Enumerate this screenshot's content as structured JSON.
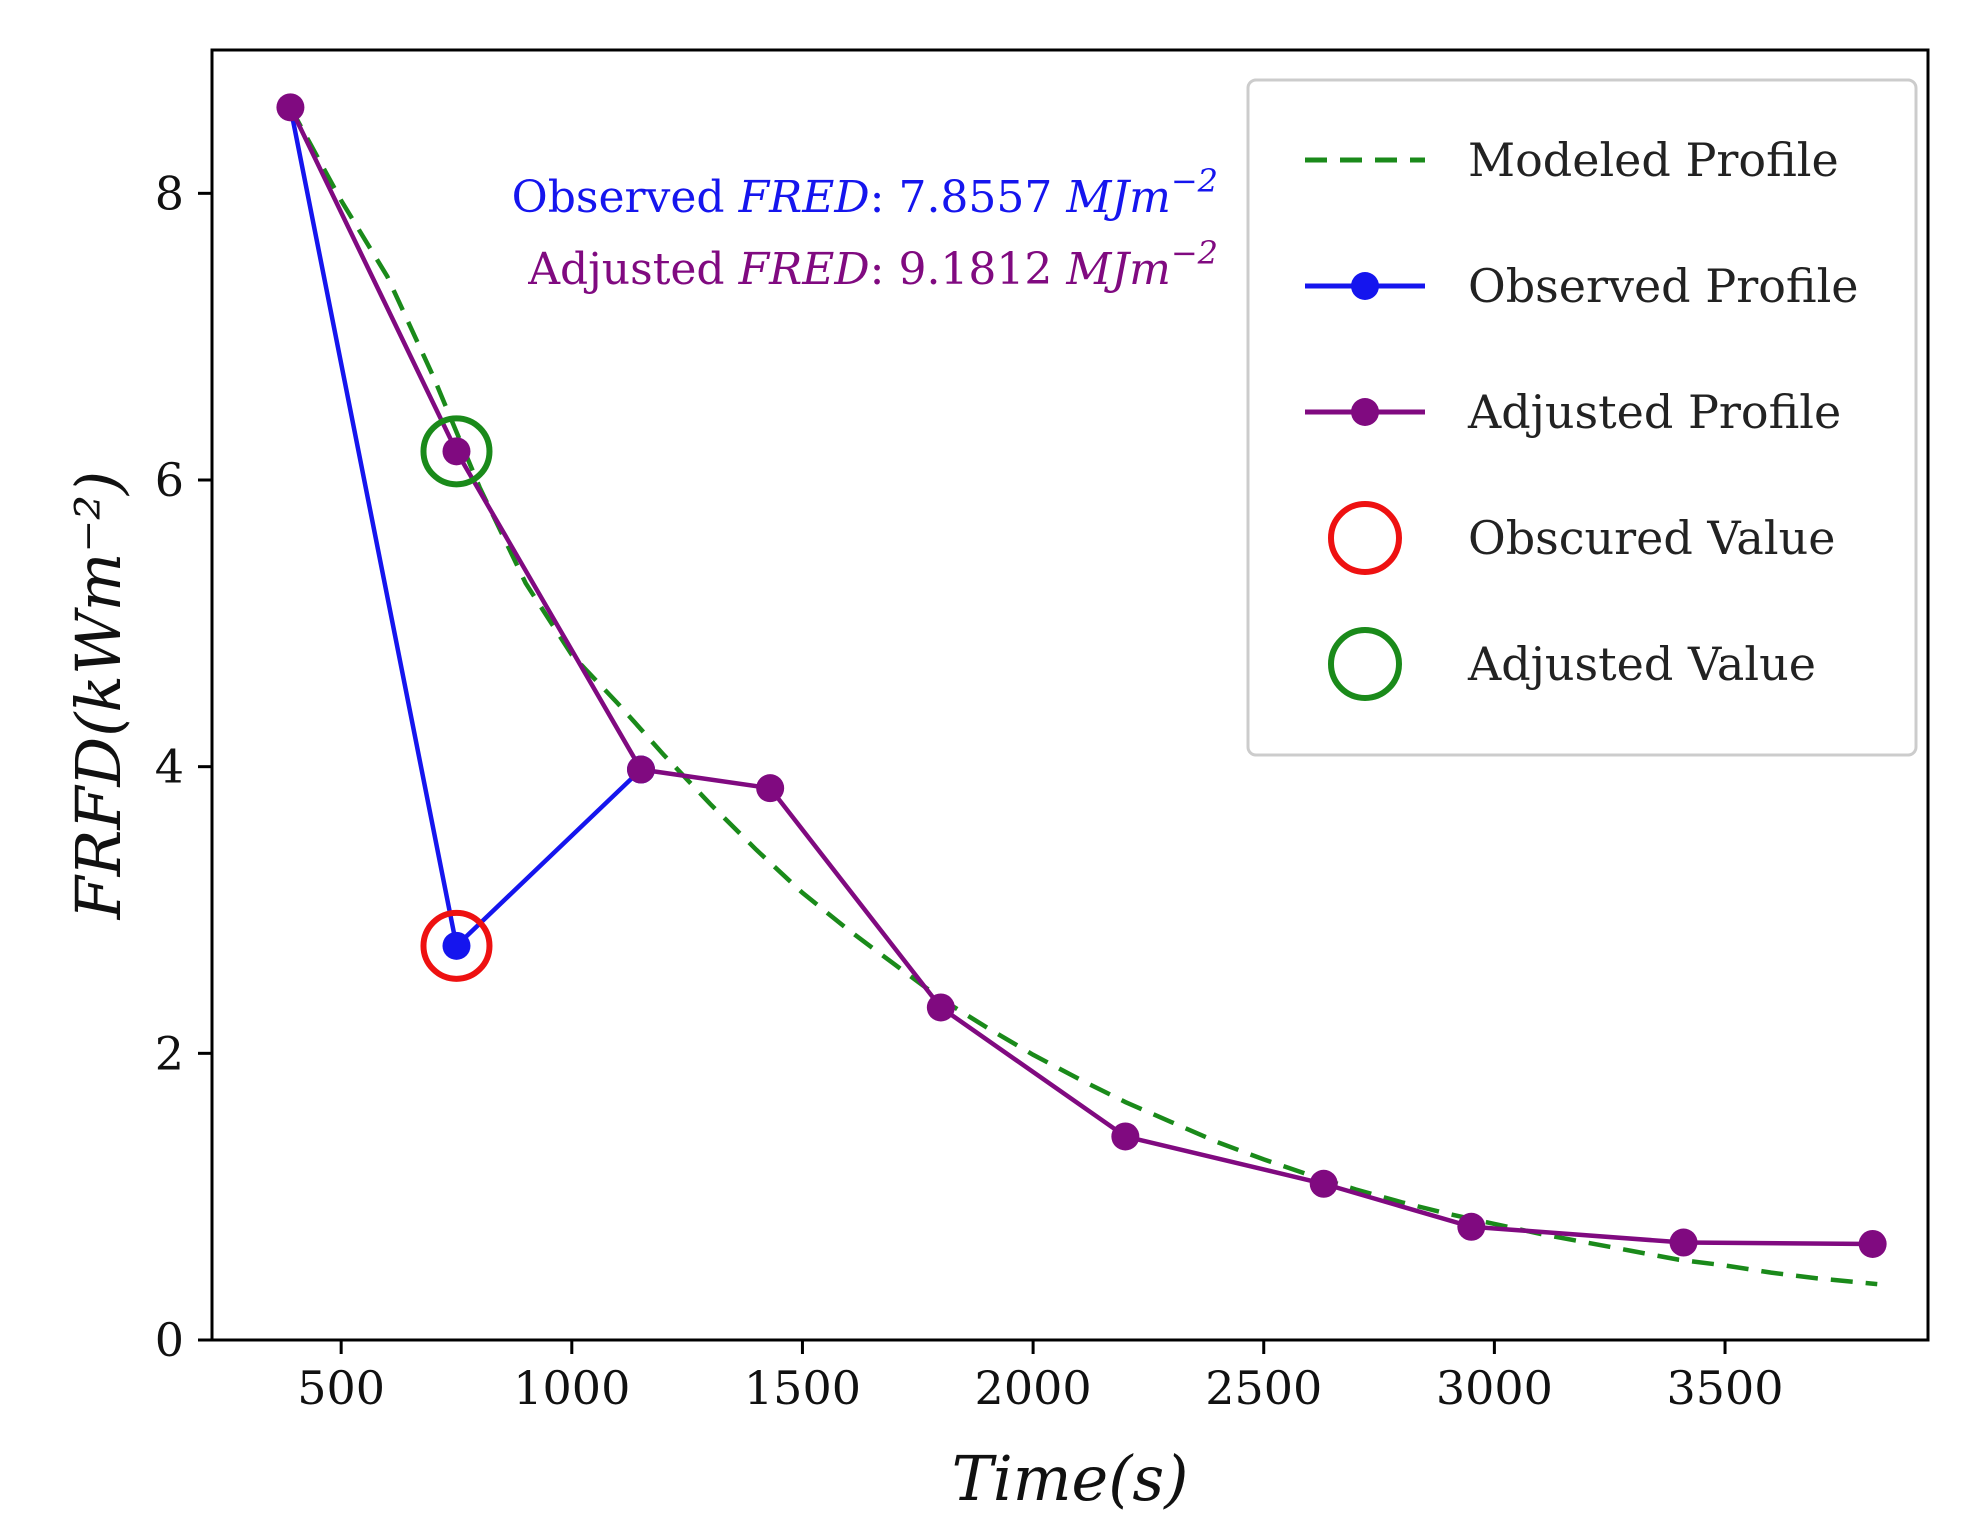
{
  "chart_data": {
    "type": "line",
    "title": "",
    "xlabel": "Time(s)",
    "ylabel": "FRFD(kWm⁻²)",
    "xlim": [
      220,
      3940
    ],
    "ylim": [
      0,
      9.0
    ],
    "xticks": [
      500,
      1000,
      1500,
      2000,
      2500,
      3000,
      3500
    ],
    "yticks": [
      0,
      2,
      4,
      6,
      8
    ],
    "xtick_labels": [
      "500",
      "1000",
      "1500",
      "2000",
      "2500",
      "3000",
      "3500"
    ],
    "ytick_labels": [
      "0",
      "2",
      "4",
      "6",
      "8"
    ],
    "grid": false,
    "legend_position": "top-right",
    "series": [
      {
        "name": "Modeled Profile",
        "style": "dashed",
        "color": "#1a8a1a",
        "x": [
          390,
          500,
          600,
          700,
          800,
          900,
          1000,
          1100,
          1200,
          1300,
          1400,
          1500,
          1600,
          1700,
          1800,
          1900,
          2000,
          2100,
          2200,
          2300,
          2400,
          2500,
          2600,
          2700,
          2800,
          2900,
          3000,
          3100,
          3200,
          3300,
          3400,
          3500,
          3600,
          3700,
          3830
        ],
        "y": [
          8.6,
          7.95,
          7.42,
          6.72,
          5.95,
          5.28,
          4.78,
          4.44,
          4.08,
          3.74,
          3.42,
          3.12,
          2.86,
          2.62,
          2.38,
          2.18,
          1.99,
          1.82,
          1.66,
          1.52,
          1.38,
          1.26,
          1.15,
          1.05,
          0.96,
          0.88,
          0.81,
          0.74,
          0.68,
          0.62,
          0.56,
          0.52,
          0.47,
          0.43,
          0.39
        ]
      },
      {
        "name": "Observed Profile",
        "style": "solid-marker",
        "color": "#1515ee",
        "x": [
          390,
          750,
          1150
        ],
        "y": [
          8.6,
          2.75,
          3.98
        ]
      },
      {
        "name": "Adjusted Profile",
        "style": "solid-marker",
        "color": "#800a80",
        "x": [
          390,
          750,
          1150,
          1430,
          1800,
          2200,
          2630,
          2950,
          3410,
          3820
        ],
        "y": [
          8.6,
          6.2,
          3.98,
          3.85,
          2.32,
          1.42,
          1.09,
          0.79,
          0.68,
          0.67
        ]
      }
    ],
    "highlights": [
      {
        "name": "Obscured Value",
        "color": "#ee1111",
        "x": 750,
        "y": 2.75
      },
      {
        "name": "Adjusted Value",
        "color": "#1a8a1a",
        "x": 750,
        "y": 6.2
      }
    ],
    "annotations": [
      {
        "prefix": "Observed ",
        "italic": "FRED",
        "value": ": 7.8557 ",
        "unit": "MJm",
        "exp": "−2",
        "color": "#1515ee"
      },
      {
        "prefix": "Adjusted ",
        "italic": "FRED",
        "value": ": 9.1812 ",
        "unit": "MJm",
        "exp": "−2",
        "color": "#800a80"
      }
    ],
    "legend": [
      {
        "label": "Modeled Profile",
        "kind": "dashed",
        "color": "#1a8a1a"
      },
      {
        "label": "Observed Profile",
        "kind": "line-marker",
        "color": "#1515ee"
      },
      {
        "label": "Adjusted Profile",
        "kind": "line-marker",
        "color": "#800a80"
      },
      {
        "label": "Obscured Value",
        "kind": "ring",
        "color": "#ee1111"
      },
      {
        "label": "Adjusted Value",
        "kind": "ring",
        "color": "#1a8a1a"
      }
    ]
  }
}
